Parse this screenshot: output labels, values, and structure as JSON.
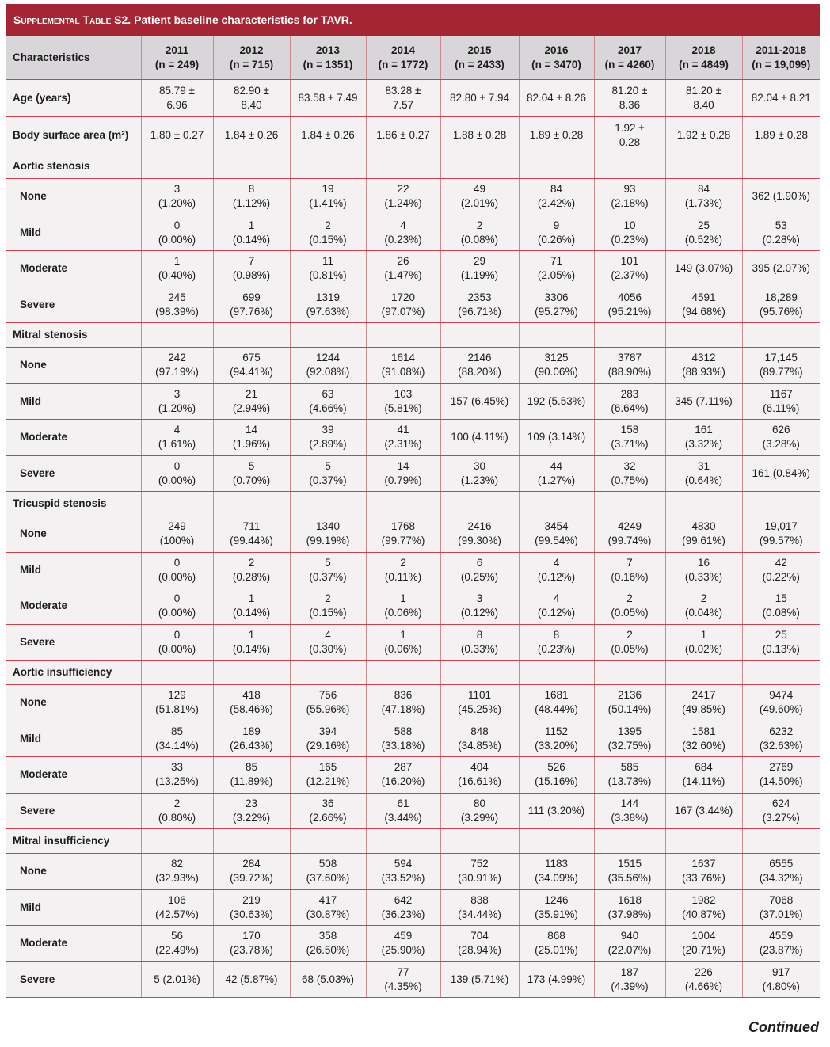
{
  "title": {
    "prefix": "Supplemental Table S2.",
    "text": "Patient baseline characteristics for TAVR."
  },
  "columns": [
    "Characteristics",
    "2011\n(n = 249)",
    "2012\n(n = 715)",
    "2013\n(n = 1351)",
    "2014\n(n = 1772)",
    "2015\n(n = 2433)",
    "2016\n(n = 3470)",
    "2017\n(n = 4260)",
    "2018\n(n = 4849)",
    "2011-2018\n(n = 19,099)"
  ],
  "rows": [
    {
      "type": "big",
      "label": "Age (years)",
      "values": [
        "85.79 ±\n6.96",
        "82.90 ±\n8.40",
        "83.58 ± 7.49",
        "83.28 ±\n7.57",
        "82.80 ± 7.94",
        "82.04 ± 8.26",
        "81.20 ±\n8.36",
        "81.20 ±\n8.40",
        "82.04 ± 8.21"
      ]
    },
    {
      "type": "big",
      "label": "Body surface area (m²)",
      "values": [
        "1.80 ± 0.27",
        "1.84 ± 0.26",
        "1.84 ± 0.26",
        "1.86 ± 0.27",
        "1.88 ± 0.28",
        "1.89 ± 0.28",
        "1.92 ±\n0.28",
        "1.92 ± 0.28",
        "1.89 ± 0.28"
      ]
    },
    {
      "type": "section",
      "label": "Aortic stenosis",
      "values": [
        "",
        "",
        "",
        "",
        "",
        "",
        "",
        "",
        ""
      ]
    },
    {
      "type": "sub",
      "label": "None",
      "values": [
        "3\n(1.20%)",
        "8\n(1.12%)",
        "19\n(1.41%)",
        "22\n(1.24%)",
        "49\n(2.01%)",
        "84\n(2.42%)",
        "93\n(2.18%)",
        "84\n(1.73%)",
        "362 (1.90%)"
      ]
    },
    {
      "type": "sub",
      "label": "Mild",
      "values": [
        "0\n(0.00%)",
        "1\n(0.14%)",
        "2\n(0.15%)",
        "4\n(0.23%)",
        "2\n(0.08%)",
        "9\n(0.26%)",
        "10\n(0.23%)",
        "25\n(0.52%)",
        "53\n(0.28%)"
      ]
    },
    {
      "type": "sub",
      "label": "Moderate",
      "values": [
        "1\n(0.40%)",
        "7\n(0.98%)",
        "11\n(0.81%)",
        "26\n(1.47%)",
        "29\n(1.19%)",
        "71\n(2.05%)",
        "101\n(2.37%)",
        "149 (3.07%)",
        "395 (2.07%)"
      ]
    },
    {
      "type": "sub",
      "label": "Severe",
      "values": [
        "245\n(98.39%)",
        "699\n(97.76%)",
        "1319\n(97.63%)",
        "1720\n(97.07%)",
        "2353\n(96.71%)",
        "3306\n(95.27%)",
        "4056\n(95.21%)",
        "4591\n(94.68%)",
        "18,289\n(95.76%)"
      ]
    },
    {
      "type": "section",
      "label": "Mitral stenosis",
      "values": [
        "",
        "",
        "",
        "",
        "",
        "",
        "",
        "",
        ""
      ]
    },
    {
      "type": "sub",
      "label": "None",
      "values": [
        "242\n(97.19%)",
        "675\n(94.41%)",
        "1244\n(92.08%)",
        "1614\n(91.08%)",
        "2146\n(88.20%)",
        "3125\n(90.06%)",
        "3787\n(88.90%)",
        "4312\n(88.93%)",
        "17,145\n(89.77%)"
      ]
    },
    {
      "type": "sub",
      "label": "Mild",
      "values": [
        "3\n(1.20%)",
        "21\n(2.94%)",
        "63\n(4.66%)",
        "103\n(5.81%)",
        "157 (6.45%)",
        "192 (5.53%)",
        "283\n(6.64%)",
        "345 (7.11%)",
        "1167\n(6.11%)"
      ]
    },
    {
      "type": "sub",
      "label": "Moderate",
      "values": [
        "4\n(1.61%)",
        "14\n(1.96%)",
        "39\n(2.89%)",
        "41\n(2.31%)",
        "100 (4.11%)",
        "109 (3.14%)",
        "158\n(3.71%)",
        "161\n(3.32%)",
        "626\n(3.28%)"
      ]
    },
    {
      "type": "sub",
      "label": "Severe",
      "values": [
        "0\n(0.00%)",
        "5\n(0.70%)",
        "5\n(0.37%)",
        "14\n(0.79%)",
        "30\n(1.23%)",
        "44\n(1.27%)",
        "32\n(0.75%)",
        "31\n(0.64%)",
        "161 (0.84%)"
      ]
    },
    {
      "type": "section",
      "label": "Tricuspid stenosis",
      "values": [
        "",
        "",
        "",
        "",
        "",
        "",
        "",
        "",
        ""
      ]
    },
    {
      "type": "sub",
      "label": "None",
      "values": [
        "249\n(100%)",
        "711\n(99.44%)",
        "1340\n(99.19%)",
        "1768\n(99.77%)",
        "2416\n(99.30%)",
        "3454\n(99.54%)",
        "4249\n(99.74%)",
        "4830\n(99.61%)",
        "19,017\n(99.57%)"
      ]
    },
    {
      "type": "sub",
      "label": "Mild",
      "values": [
        "0\n(0.00%)",
        "2\n(0.28%)",
        "5\n(0.37%)",
        "2\n(0.11%)",
        "6\n(0.25%)",
        "4\n(0.12%)",
        "7\n(0.16%)",
        "16\n(0.33%)",
        "42\n(0.22%)"
      ]
    },
    {
      "type": "sub",
      "label": "Moderate",
      "values": [
        "0\n(0.00%)",
        "1\n(0.14%)",
        "2\n(0.15%)",
        "1\n(0.06%)",
        "3\n(0.12%)",
        "4\n(0.12%)",
        "2\n(0.05%)",
        "2\n(0.04%)",
        "15\n(0.08%)"
      ]
    },
    {
      "type": "sub",
      "label": "Severe",
      "values": [
        "0\n(0.00%)",
        "1\n(0.14%)",
        "4\n(0.30%)",
        "1\n(0.06%)",
        "8\n(0.33%)",
        "8\n(0.23%)",
        "2\n(0.05%)",
        "1\n(0.02%)",
        "25\n(0.13%)"
      ]
    },
    {
      "type": "section",
      "label": "Aortic insufficiency",
      "values": [
        "",
        "",
        "",
        "",
        "",
        "",
        "",
        "",
        ""
      ]
    },
    {
      "type": "sub",
      "label": "None",
      "values": [
        "129\n(51.81%)",
        "418\n(58.46%)",
        "756\n(55.96%)",
        "836\n(47.18%)",
        "1101\n(45.25%)",
        "1681\n(48.44%)",
        "2136\n(50.14%)",
        "2417\n(49.85%)",
        "9474\n(49.60%)"
      ]
    },
    {
      "type": "sub",
      "label": "Mild",
      "values": [
        "85\n(34.14%)",
        "189\n(26.43%)",
        "394\n(29.16%)",
        "588\n(33.18%)",
        "848\n(34.85%)",
        "1152\n(33.20%)",
        "1395\n(32.75%)",
        "1581\n(32.60%)",
        "6232\n(32.63%)"
      ]
    },
    {
      "type": "sub",
      "label": "Moderate",
      "values": [
        "33\n(13.25%)",
        "85\n(11.89%)",
        "165\n(12.21%)",
        "287\n(16.20%)",
        "404\n(16.61%)",
        "526\n(15.16%)",
        "585\n(13.73%)",
        "684\n(14.11%)",
        "2769\n(14.50%)"
      ]
    },
    {
      "type": "sub",
      "label": "Severe",
      "values": [
        "2\n(0.80%)",
        "23\n(3.22%)",
        "36\n(2.66%)",
        "61\n(3.44%)",
        "80\n(3.29%)",
        "111 (3.20%)",
        "144\n(3.38%)",
        "167 (3.44%)",
        "624\n(3.27%)"
      ]
    },
    {
      "type": "section",
      "label": "Mitral insufficiency",
      "values": [
        "",
        "",
        "",
        "",
        "",
        "",
        "",
        "",
        ""
      ]
    },
    {
      "type": "sub",
      "label": "None",
      "values": [
        "82\n(32.93%)",
        "284\n(39.72%)",
        "508\n(37.60%)",
        "594\n(33.52%)",
        "752\n(30.91%)",
        "1183\n(34.09%)",
        "1515\n(35.56%)",
        "1637\n(33.76%)",
        "6555\n(34.32%)"
      ]
    },
    {
      "type": "sub",
      "label": "Mild",
      "values": [
        "106\n(42.57%)",
        "219\n(30.63%)",
        "417\n(30.87%)",
        "642\n(36.23%)",
        "838\n(34.44%)",
        "1246\n(35.91%)",
        "1618\n(37.98%)",
        "1982\n(40.87%)",
        "7068\n(37.01%)"
      ]
    },
    {
      "type": "sub",
      "label": "Moderate",
      "values": [
        "56\n(22.49%)",
        "170\n(23.78%)",
        "358\n(26.50%)",
        "459\n(25.90%)",
        "704\n(28.94%)",
        "868\n(25.01%)",
        "940\n(22.07%)",
        "1004\n(20.71%)",
        "4559\n(23.87%)"
      ]
    },
    {
      "type": "sub",
      "label": "Severe",
      "values": [
        "5 (2.01%)",
        "42 (5.87%)",
        "68 (5.03%)",
        "77\n(4.35%)",
        "139 (5.71%)",
        "173 (4.99%)",
        "187\n(4.39%)",
        "226\n(4.66%)",
        "917\n(4.80%)"
      ]
    }
  ],
  "footer": {
    "continued": "Continued"
  },
  "colors": {
    "title_bg": "#a52535",
    "header_bg": "#d9d6d9",
    "body_bg": "#f3f1f2",
    "rule": "#c8424f"
  }
}
